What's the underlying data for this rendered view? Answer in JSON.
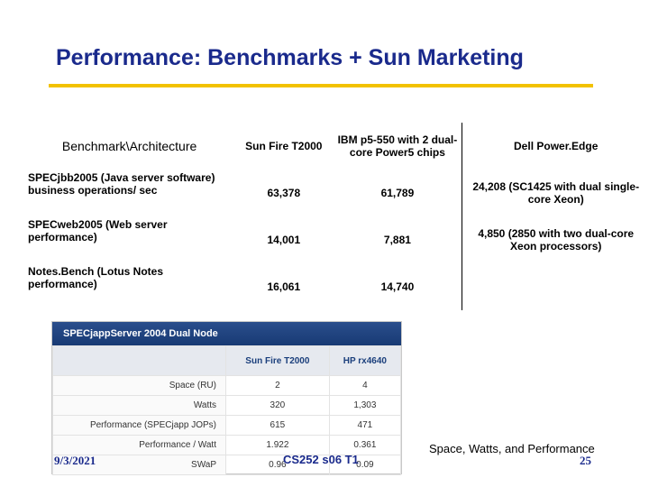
{
  "slide": {
    "title": "Performance: Benchmarks + Sun Marketing",
    "accent_color": "#f2c200",
    "title_color": "#1a2a8c"
  },
  "table": {
    "header": [
      "Benchmark\\Architecture",
      "Sun Fire T2000",
      "IBM p5-550 with 2 dual-core Power5 chips",
      "Dell Power.Edge"
    ],
    "rows": [
      [
        "SPECjbb2005 (Java server software) business operations/ sec",
        "63,378",
        "61,789",
        "24,208 (SC1425 with dual single-core Xeon)"
      ],
      [
        "SPECweb2005 (Web server performance)",
        "14,001",
        "7,881",
        "4,850 (2850 with two dual-core Xeon processors)"
      ],
      [
        "Notes.Bench (Lotus Notes performance)",
        "16,061",
        "14,740",
        ""
      ]
    ]
  },
  "screenshot": {
    "title": "SPECjappServer 2004 Dual Node",
    "col1": "Sun Fire T2000",
    "col2": "HP rx4640",
    "rows": [
      [
        "Space (RU)",
        "2",
        "4"
      ],
      [
        "Watts",
        "320",
        "1,303"
      ],
      [
        "Performance (SPECjapp JOPs)",
        "615",
        "471"
      ],
      [
        "Performance / Watt",
        "1.922",
        "0.361"
      ],
      [
        "SWaP",
        "0.96",
        "0.09"
      ]
    ]
  },
  "caption": "Space, Watts, and Performance",
  "footer": {
    "date": "9/3/2021",
    "course": "CS252 s06 T1",
    "page": "25"
  }
}
